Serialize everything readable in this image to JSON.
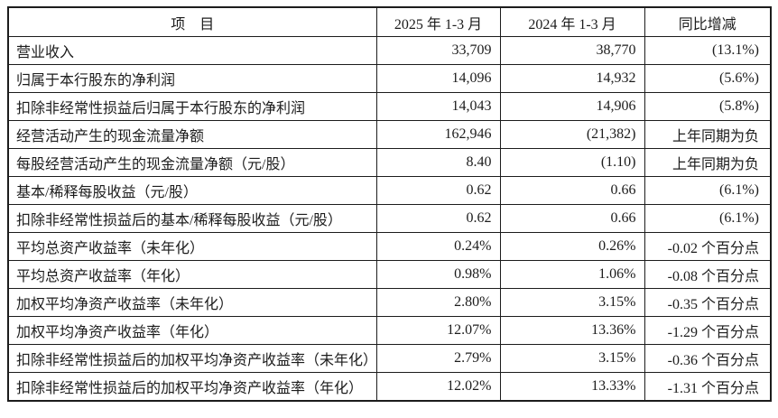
{
  "table": {
    "columns": [
      "项　目",
      "2025 年 1-3 月",
      "2024 年 1-3 月",
      "同比增减"
    ],
    "rows": [
      {
        "label": "营业收入",
        "y2025": "33,709",
        "y2024": "38,770",
        "change": "(13.1%)"
      },
      {
        "label": "归属于本行股东的净利润",
        "y2025": "14,096",
        "y2024": "14,932",
        "change": "(5.6%)"
      },
      {
        "label": "扣除非经常性损益后归属于本行股东的净利润",
        "y2025": "14,043",
        "y2024": "14,906",
        "change": "(5.8%)"
      },
      {
        "label": "经营活动产生的现金流量净额",
        "y2025": "162,946",
        "y2024": "(21,382)",
        "change": "上年同期为负"
      },
      {
        "label": "每股经营活动产生的现金流量净额（元/股）",
        "y2025": "8.40",
        "y2024": "(1.10)",
        "change": "上年同期为负"
      },
      {
        "label": "基本/稀释每股收益（元/股）",
        "y2025": "0.62",
        "y2024": "0.66",
        "change": "(6.1%)"
      },
      {
        "label": "扣除非经常性损益后的基本/稀释每股收益（元/股）",
        "y2025": "0.62",
        "y2024": "0.66",
        "change": "(6.1%)"
      },
      {
        "label": "平均总资产收益率（未年化）",
        "y2025": "0.24%",
        "y2024": "0.26%",
        "change": "-0.02 个百分点"
      },
      {
        "label": "平均总资产收益率（年化）",
        "y2025": "0.98%",
        "y2024": "1.06%",
        "change": "-0.08 个百分点"
      },
      {
        "label": "加权平均净资产收益率（未年化）",
        "y2025": "2.80%",
        "y2024": "3.15%",
        "change": "-0.35 个百分点"
      },
      {
        "label": "加权平均净资产收益率（年化）",
        "y2025": "12.07%",
        "y2024": "13.36%",
        "change": "-1.29 个百分点"
      },
      {
        "label": "扣除非经常性损益后的加权平均净资产收益率（未年化）",
        "y2025": "2.79%",
        "y2024": "3.15%",
        "change": "-0.36 个百分点"
      },
      {
        "label": "扣除非经常性损益后的加权平均净资产收益率（年化）",
        "y2025": "12.02%",
        "y2024": "13.33%",
        "change": "-1.31 个百分点"
      }
    ]
  },
  "colors": {
    "text": "#1c1c1c",
    "border": "#1c1c1c",
    "background": "#ffffff"
  }
}
